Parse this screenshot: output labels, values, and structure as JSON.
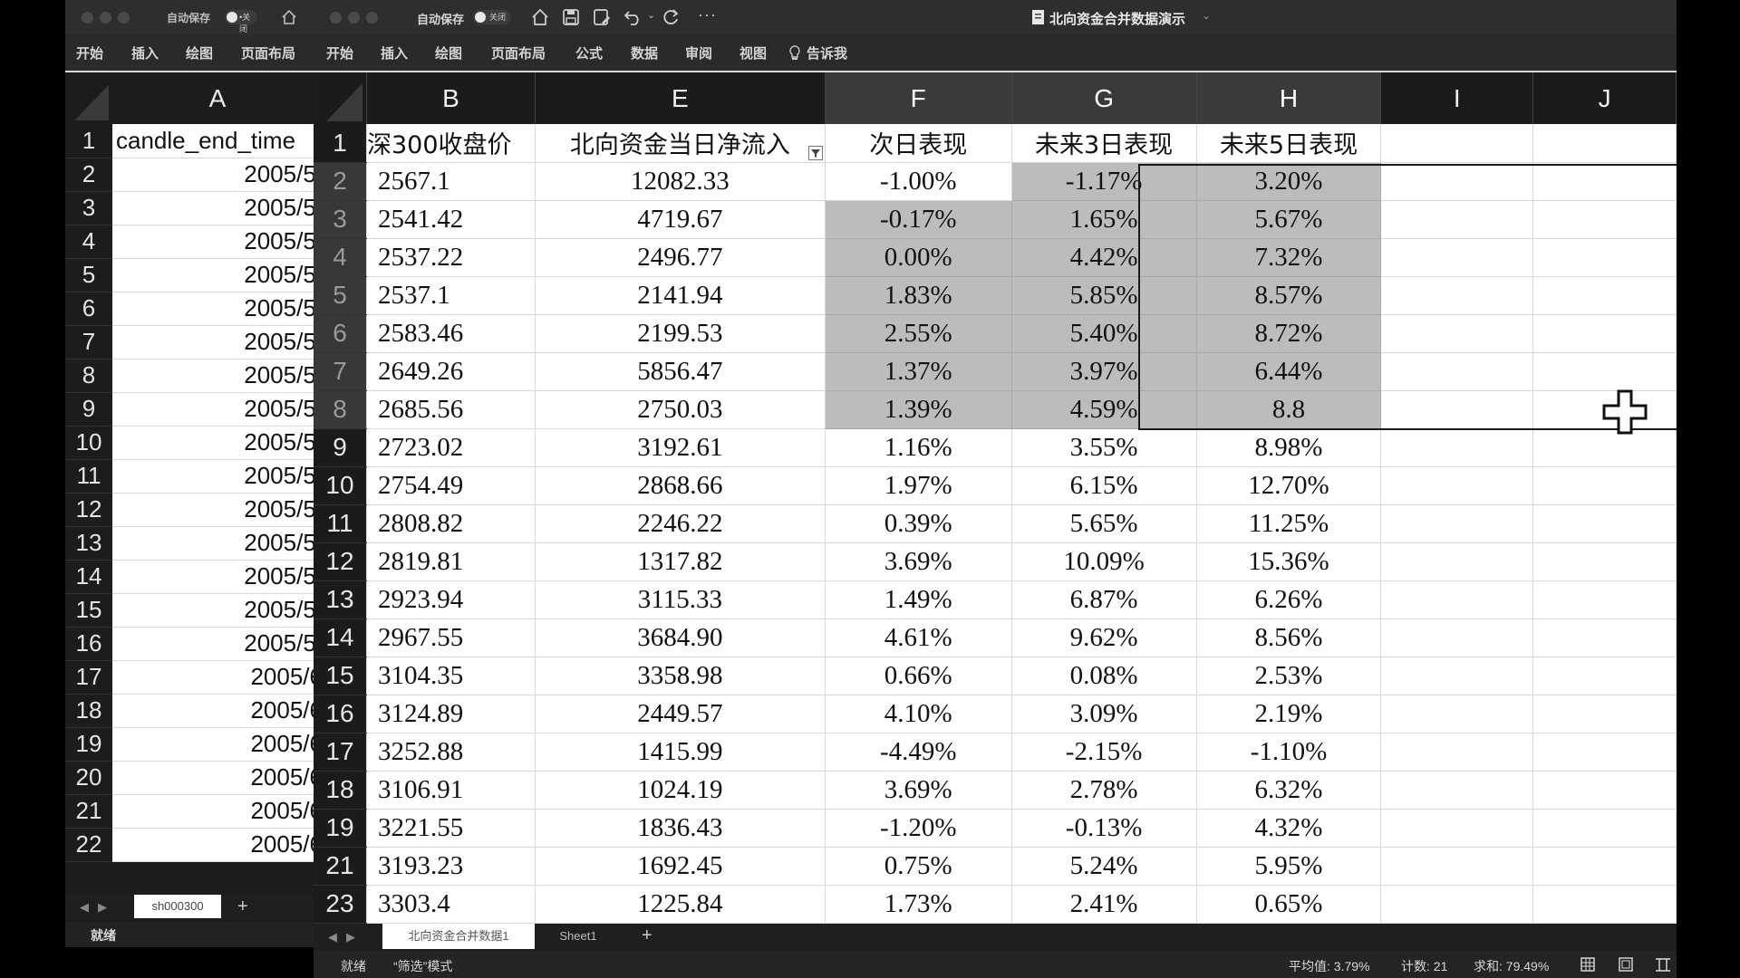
{
  "back_window": {
    "autosave_label": "自动保存",
    "toggle_label": "•关闭",
    "ribbon": [
      "开始",
      "插入",
      "绘图",
      "页面布局"
    ],
    "column_header": "A",
    "rows": [
      {
        "n": "1",
        "v": "candle_end_time"
      },
      {
        "n": "2",
        "v": "2005/5/"
      },
      {
        "n": "3",
        "v": "2005/5/"
      },
      {
        "n": "4",
        "v": "2005/5/"
      },
      {
        "n": "5",
        "v": "2005/5/"
      },
      {
        "n": "6",
        "v": "2005/5/"
      },
      {
        "n": "7",
        "v": "2005/5/"
      },
      {
        "n": "8",
        "v": "2005/5/"
      },
      {
        "n": "9",
        "v": "2005/5/"
      },
      {
        "n": "10",
        "v": "2005/5/"
      },
      {
        "n": "11",
        "v": "2005/5/"
      },
      {
        "n": "12",
        "v": "2005/5/"
      },
      {
        "n": "13",
        "v": "2005/5/"
      },
      {
        "n": "14",
        "v": "2005/5/"
      },
      {
        "n": "15",
        "v": "2005/5/"
      },
      {
        "n": "16",
        "v": "2005/5/"
      },
      {
        "n": "17",
        "v": "2005/6"
      },
      {
        "n": "18",
        "v": "2005/6"
      },
      {
        "n": "19",
        "v": "2005/6"
      },
      {
        "n": "20",
        "v": "2005/6"
      },
      {
        "n": "21",
        "v": "2005/6"
      },
      {
        "n": "22",
        "v": "2005/6"
      }
    ],
    "sheet_tab": "sh000300",
    "add_sheet": "+",
    "status": "就绪"
  },
  "front_window": {
    "autosave_label": "自动保存",
    "toggle_label": "关闭",
    "title": "北向资金合并数据演示",
    "ribbon": [
      "开始",
      "插入",
      "绘图",
      "页面布局",
      "公式",
      "数据",
      "审阅",
      "视图"
    ],
    "tell_me": "告诉我",
    "columns": [
      "B",
      "E",
      "F",
      "G",
      "H",
      "I",
      "J"
    ],
    "header_row": {
      "n": "1",
      "b": "深300收盘价",
      "e": "北向资金当日净流入",
      "f": "次日表现",
      "g": "未来3日表现",
      "h": "未来5日表现"
    },
    "rows": [
      {
        "n": "2",
        "b": "2567.1",
        "e": "12082.33",
        "f": "-1.00%",
        "g": "-1.17%",
        "h": "3.20%"
      },
      {
        "n": "3",
        "b": "2541.42",
        "e": "4719.67",
        "f": "-0.17%",
        "g": "1.65%",
        "h": "5.67%"
      },
      {
        "n": "4",
        "b": "2537.22",
        "e": "2496.77",
        "f": "0.00%",
        "g": "4.42%",
        "h": "7.32%"
      },
      {
        "n": "5",
        "b": "2537.1",
        "e": "2141.94",
        "f": "1.83%",
        "g": "5.85%",
        "h": "8.57%"
      },
      {
        "n": "6",
        "b": "2583.46",
        "e": "2199.53",
        "f": "2.55%",
        "g": "5.40%",
        "h": "8.72%"
      },
      {
        "n": "7",
        "b": "2649.26",
        "e": "5856.47",
        "f": "1.37%",
        "g": "3.97%",
        "h": "6.44%"
      },
      {
        "n": "8",
        "b": "2685.56",
        "e": "2750.03",
        "f": "1.39%",
        "g": "4.59%",
        "h": "8.8"
      },
      {
        "n": "9",
        "b": "2723.02",
        "e": "3192.61",
        "f": "1.16%",
        "g": "3.55%",
        "h": "8.98%"
      },
      {
        "n": "10",
        "b": "2754.49",
        "e": "2868.66",
        "f": "1.97%",
        "g": "6.15%",
        "h": "12.70%"
      },
      {
        "n": "11",
        "b": "2808.82",
        "e": "2246.22",
        "f": "0.39%",
        "g": "5.65%",
        "h": "11.25%"
      },
      {
        "n": "12",
        "b": "2819.81",
        "e": "1317.82",
        "f": "3.69%",
        "g": "10.09%",
        "h": "15.36%"
      },
      {
        "n": "13",
        "b": "2923.94",
        "e": "3115.33",
        "f": "1.49%",
        "g": "6.87%",
        "h": "6.26%"
      },
      {
        "n": "14",
        "b": "2967.55",
        "e": "3684.90",
        "f": "4.61%",
        "g": "9.62%",
        "h": "8.56%"
      },
      {
        "n": "15",
        "b": "3104.35",
        "e": "3358.98",
        "f": "0.66%",
        "g": "0.08%",
        "h": "2.53%"
      },
      {
        "n": "16",
        "b": "3124.89",
        "e": "2449.57",
        "f": "4.10%",
        "g": "3.09%",
        "h": "2.19%"
      },
      {
        "n": "17",
        "b": "3252.88",
        "e": "1415.99",
        "f": "-4.49%",
        "g": "-2.15%",
        "h": "-1.10%"
      },
      {
        "n": "18",
        "b": "3106.91",
        "e": "1024.19",
        "f": "3.69%",
        "g": "2.78%",
        "h": "6.32%"
      },
      {
        "n": "19",
        "b": "3221.55",
        "e": "1836.43",
        "f": "-1.20%",
        "g": "-0.13%",
        "h": "4.32%"
      },
      {
        "n": "21",
        "b": "3193.23",
        "e": "1692.45",
        "f": "0.75%",
        "g": "5.24%",
        "h": "5.95%"
      },
      {
        "n": "23",
        "b": "3303.4",
        "e": "1225.84",
        "f": "1.73%",
        "g": "2.41%",
        "h": "0.65%"
      }
    ],
    "sheet_tabs": [
      "北向资金合并数据1",
      "Sheet1"
    ],
    "add_sheet": "+",
    "status_ready": "就绪",
    "status_mode": "“筛选”模式",
    "status_average": "平均值: 3.79%",
    "status_count": "计数: 21",
    "status_sum": "求和: 79.49%"
  }
}
